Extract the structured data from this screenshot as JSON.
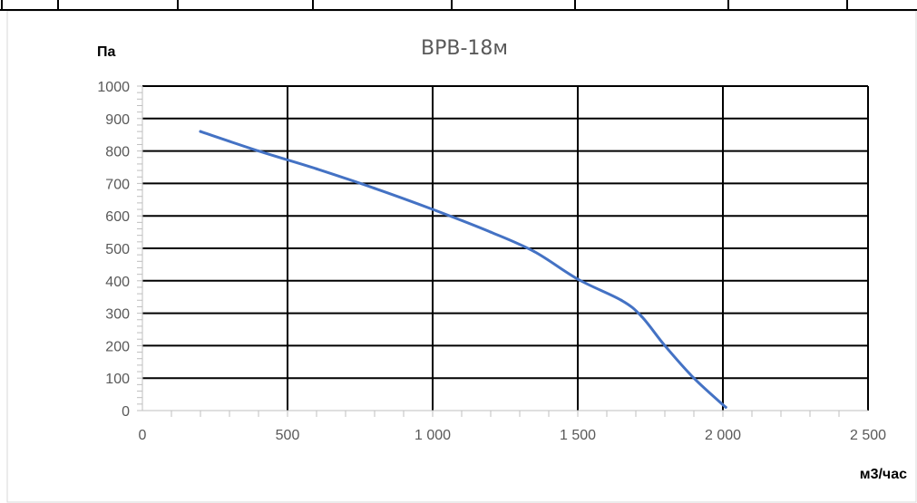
{
  "chart_data": {
    "type": "line",
    "title": "ВРВ-18м",
    "ylabel": "Па",
    "xlabel": "м3/час",
    "xlim": [
      0,
      2500
    ],
    "ylim": [
      0,
      1000
    ],
    "x_ticks": [
      "0",
      "500",
      "1 000",
      "1 500",
      "2 000",
      "2 500"
    ],
    "y_ticks": [
      "0",
      "100",
      "200",
      "300",
      "400",
      "500",
      "600",
      "700",
      "800",
      "900",
      "1000"
    ],
    "grid": true,
    "legend": "none",
    "series": [
      {
        "color": "#4472C4",
        "x": [
          200,
          400,
          600,
          800,
          1000,
          1200,
          1350,
          1500,
          1650,
          1720,
          1800,
          1900,
          2010
        ],
        "y": [
          860,
          800,
          745,
          685,
          620,
          550,
          490,
          405,
          340,
          290,
          200,
          100,
          10
        ]
      }
    ]
  }
}
